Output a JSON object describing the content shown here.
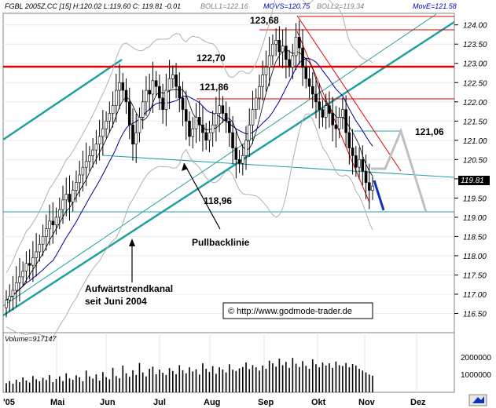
{
  "chart_data": {
    "type": "candlestick",
    "header": {
      "symbol": "FGBL 2005Z,CC [15] H:120.02 L:119.60 C: 119.81 -0.01",
      "boll1": "BOLL1=122.16",
      "movs": "MOVS=120.75",
      "boll2": "BOLL2=119.34",
      "move": "MovE=121.58"
    },
    "y_axis": {
      "range": [
        116.0,
        124.3
      ],
      "ticks": [
        "124.00",
        "123.50",
        "123.00",
        "122.50",
        "122.00",
        "121.50",
        "121.00",
        "120.50",
        "120.00",
        "119.50",
        "119.00",
        "118.50",
        "118.00",
        "117.50",
        "117.00",
        "116.50"
      ],
      "last_price": "119.81"
    },
    "x_axis": {
      "labels": [
        "'05",
        "Mai",
        "Jun",
        "Jul",
        "Aug",
        "Sep",
        "Okt",
        "Nov",
        "Dez"
      ]
    },
    "volume_panel": {
      "title": "Volume=917147",
      "ticks": [
        "2000000",
        "1000000"
      ]
    },
    "horizontal_levels": [
      {
        "value": 122.7,
        "label": "122,70",
        "color": "#e00000"
      },
      {
        "value": 121.86,
        "label": "121,86",
        "color": "#e00000"
      },
      {
        "value": 121.06,
        "label": "121,06",
        "color": "#20a0a0"
      },
      {
        "value": 118.96,
        "label": "118,96",
        "color": "#20a0a0"
      }
    ],
    "peak_label": "123,68",
    "annotations": {
      "pullback": "Pullbacklinie",
      "channel_line1": "Aufwärtstrendkanal",
      "channel_line2": "seit Juni 2004"
    },
    "watermark": "© http://www.godmode-trader.de",
    "closes": [
      116.85,
      116.95,
      117.1,
      117.3,
      117.45,
      117.6,
      117.8,
      117.75,
      117.95,
      118.1,
      118.3,
      118.5,
      118.7,
      118.9,
      118.8,
      119.0,
      119.2,
      119.45,
      119.6,
      119.4,
      119.7,
      119.9,
      120.1,
      120.3,
      120.45,
      120.6,
      120.75,
      120.9,
      121.1,
      121.3,
      121.5,
      121.7,
      121.9,
      122.3,
      122.5,
      122.3,
      122.0,
      121.4,
      120.9,
      121.2,
      121.6,
      122.0,
      122.3,
      122.2,
      122.55,
      122.4,
      122.1,
      121.8,
      122.3,
      122.6,
      122.7,
      122.4,
      122.1,
      121.8,
      121.5,
      121.1,
      121.3,
      121.6,
      121.4,
      121.2,
      121.0,
      121.2,
      121.4,
      121.7,
      121.9,
      121.7,
      121.5,
      121.2,
      120.8,
      120.5,
      120.4,
      120.6,
      121.0,
      121.4,
      121.8,
      122.1,
      122.4,
      122.7,
      122.9,
      123.2,
      123.5,
      123.6,
      123.3,
      123.45,
      123.1,
      122.9,
      123.2,
      123.68,
      123.4,
      122.9,
      122.6,
      122.4,
      122.2,
      122.0,
      121.8,
      121.6,
      121.9,
      121.7,
      121.4,
      121.3,
      121.6,
      121.8,
      121.2,
      120.8,
      120.6,
      120.3,
      120.5,
      120.2,
      119.9,
      119.7,
      119.81
    ],
    "volumes": [
      500000,
      620000,
      480000,
      700000,
      560000,
      820000,
      650000,
      540000,
      900000,
      720000,
      610000,
      800000,
      680000,
      950000,
      560000,
      740000,
      880000,
      620000,
      1050000,
      770000,
      690000,
      940000,
      830000,
      610000,
      1200000,
      880000,
      760000,
      990000,
      650000,
      1120000,
      840000,
      720000,
      1350000,
      900000,
      780000,
      1480000,
      1050000,
      860000,
      1220000,
      960000,
      1620000,
      1100000,
      880000,
      1300000,
      1420000,
      1000000,
      1250000,
      1080000,
      960000,
      1340000,
      1180000,
      1000000,
      1500000,
      1220000,
      1050000,
      1380000,
      1150000,
      1270000,
      980000,
      1600000,
      1300000,
      1120000,
      1450000,
      1020000,
      1380000,
      1260000,
      1100000,
      1550000,
      1250000,
      1180000,
      1320000,
      1400000,
      1650000,
      1280000,
      1500000,
      1380000,
      1200000,
      1480000,
      1300000,
      1750000,
      1600000,
      1420000,
      1860000,
      1500000,
      1680000,
      1350000,
      1900000,
      1580000,
      1400000,
      1720000,
      1460000,
      1300000,
      1820000,
      1550000,
      1380000,
      1650000,
      1480000,
      1600000,
      1350000,
      1700000,
      1500000,
      1450000,
      1620000,
      1380000,
      1560000,
      1480000,
      1300000,
      1200000,
      1100000,
      980000,
      917147
    ]
  }
}
